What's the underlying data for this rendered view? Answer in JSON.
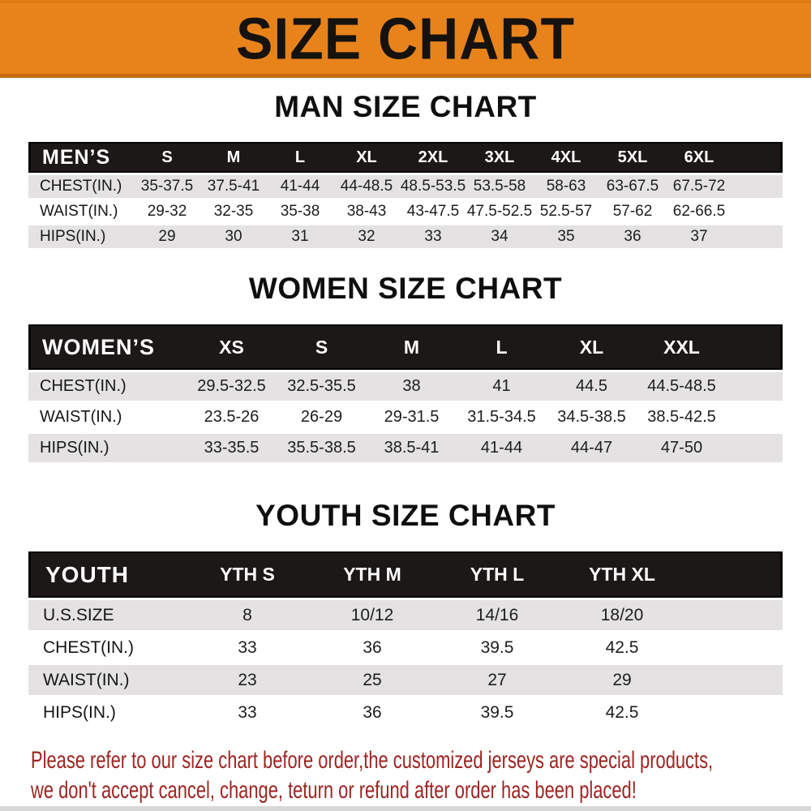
{
  "banner": {
    "title": "SIZE CHART"
  },
  "colors": {
    "banner_orange": "#E8831C",
    "header_bar": "#1B1817",
    "row_gray": "#E4E2E2",
    "footer_red": "#9D2421"
  },
  "men": {
    "heading": "MAN SIZE CHART",
    "label": "MEN’S",
    "sizes": [
      "S",
      "M",
      "L",
      "XL",
      "2XL",
      "3XL",
      "4XL",
      "5XL",
      "6XL"
    ],
    "rows": [
      {
        "label": "CHEST(IN.)",
        "values": [
          "35-37.5",
          "37.5-41",
          "41-44",
          "44-48.5",
          "48.5-53.5",
          "53.5-58",
          "58-63",
          "63-67.5",
          "67.5-72"
        ]
      },
      {
        "label": "WAIST(IN.)",
        "values": [
          "29-32",
          "32-35",
          "35-38",
          "38-43",
          "43-47.5",
          "47.5-52.5",
          "52.5-57",
          "57-62",
          "62-66.5"
        ]
      },
      {
        "label": "HIPS(IN.)",
        "values": [
          "29",
          "30",
          "31",
          "32",
          "33",
          "34",
          "35",
          "36",
          "37"
        ]
      }
    ]
  },
  "women": {
    "heading": "WOMEN SIZE CHART",
    "label": "WOMEN’S",
    "sizes": [
      "XS",
      "S",
      "M",
      "L",
      "XL",
      "XXL"
    ],
    "rows": [
      {
        "label": "CHEST(IN.)",
        "values": [
          "29.5-32.5",
          "32.5-35.5",
          "38",
          "41",
          "44.5",
          "44.5-48.5"
        ]
      },
      {
        "label": "WAIST(IN.)",
        "values": [
          "23.5-26",
          "26-29",
          "29-31.5",
          "31.5-34.5",
          "34.5-38.5",
          "38.5-42.5"
        ]
      },
      {
        "label": "HIPS(IN.)",
        "values": [
          "33-35.5",
          "35.5-38.5",
          "38.5-41",
          "41-44",
          "44-47",
          "47-50"
        ]
      }
    ]
  },
  "youth": {
    "heading": "YOUTH SIZE CHART",
    "label": "YOUTH",
    "sizes": [
      "YTH S",
      "YTH M",
      "YTH L",
      "YTH XL"
    ],
    "rows": [
      {
        "label": "U.S.SIZE",
        "values": [
          "8",
          "10/12",
          "14/16",
          "18/20"
        ]
      },
      {
        "label": "CHEST(IN.)",
        "values": [
          "33",
          "36",
          "39.5",
          "42.5"
        ]
      },
      {
        "label": "WAIST(IN.)",
        "values": [
          "23",
          "25",
          "27",
          "29"
        ]
      },
      {
        "label": "HIPS(IN.)",
        "values": [
          "33",
          "36",
          "39.5",
          "42.5"
        ]
      }
    ]
  },
  "footer": {
    "line1": "Please refer to our size chart before order,the customized jerseys are special products,",
    "line2": "we don't accept cancel, change, teturn or refund after order has been placed!"
  }
}
